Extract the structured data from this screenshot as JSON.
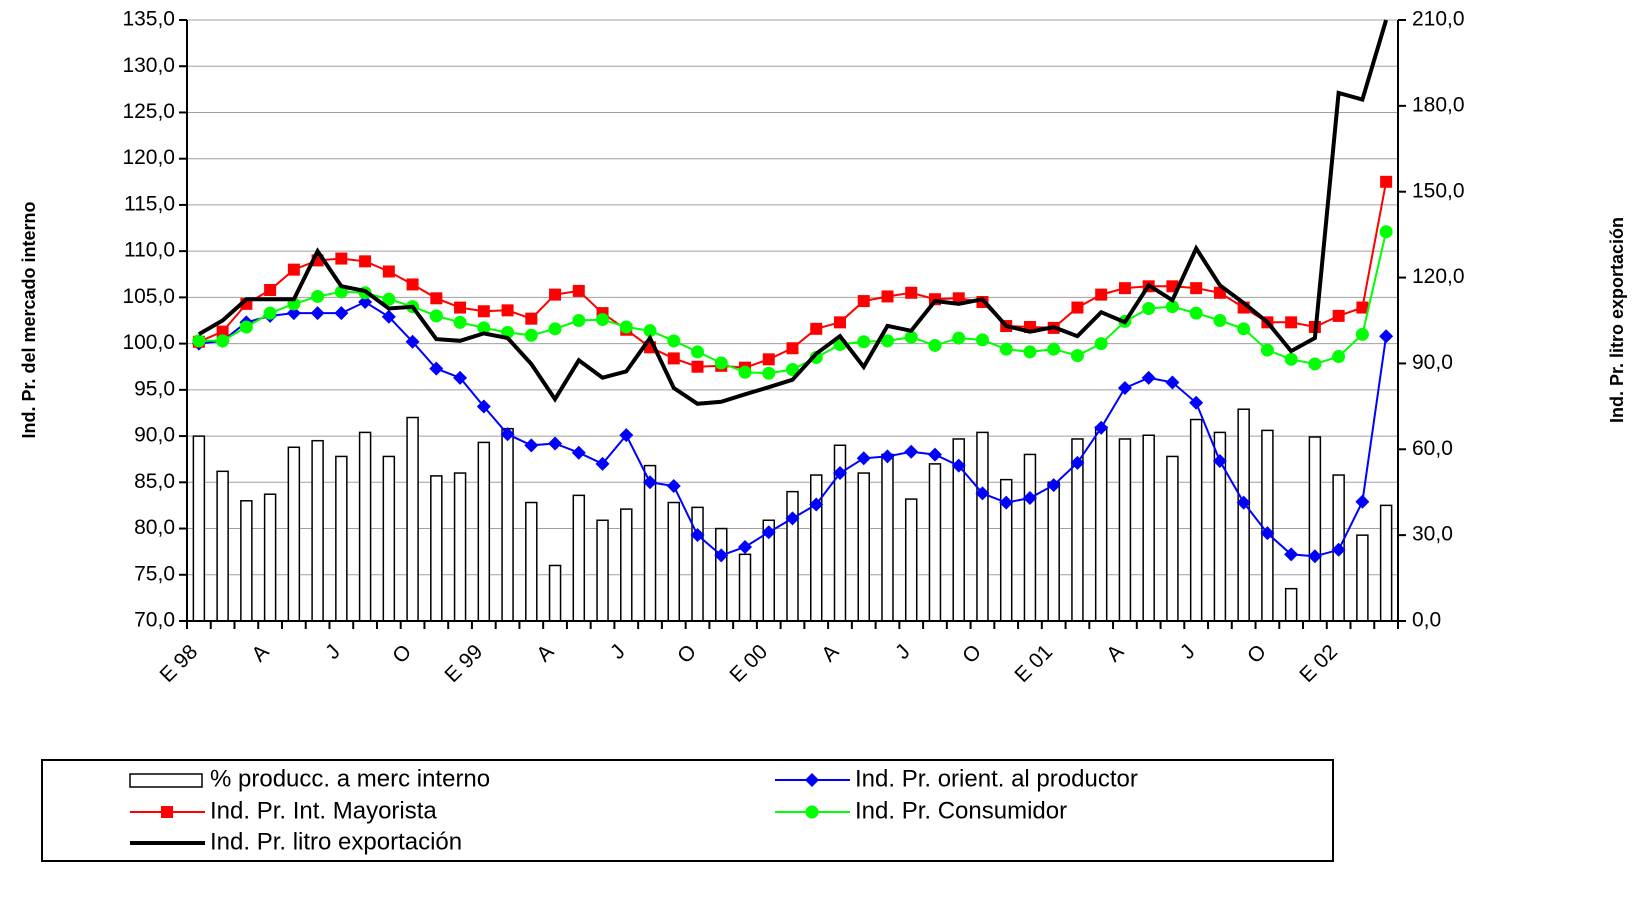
{
  "chart_data": {
    "type": "bar",
    "y_label": "Ind. Pr. del mercado interno",
    "y2_label": "Ind. Pr. litro exportación",
    "categories": [
      "E 98",
      null,
      null,
      "A",
      null,
      null,
      "J",
      null,
      null,
      "O",
      null,
      null,
      "E 99",
      null,
      null,
      "A",
      null,
      null,
      "J",
      null,
      null,
      "O",
      null,
      null,
      "E 00",
      null,
      null,
      "A",
      null,
      null,
      "J",
      null,
      null,
      "O",
      null,
      null,
      "E 01",
      null,
      null,
      "A",
      null,
      null,
      "J",
      null,
      null,
      "O",
      null,
      null,
      "E 02",
      null,
      null
    ],
    "ylim": [
      70,
      135
    ],
    "yticks": [
      {
        "value": 70,
        "label": "70,0"
      },
      {
        "value": 75,
        "label": "75,0"
      },
      {
        "value": 80,
        "label": "80,0"
      },
      {
        "value": 85,
        "label": "85,0"
      },
      {
        "value": 90,
        "label": "90,0"
      },
      {
        "value": 95,
        "label": "95,0"
      },
      {
        "value": 100,
        "label": "100,0"
      },
      {
        "value": 105,
        "label": "105,0"
      },
      {
        "value": 110,
        "label": "110,0"
      },
      {
        "value": 115,
        "label": "115,0"
      },
      {
        "value": 120,
        "label": "120,0"
      },
      {
        "value": 125,
        "label": "125,0"
      },
      {
        "value": 130,
        "label": "130,0"
      },
      {
        "value": 135,
        "label": "135,0"
      }
    ],
    "y2lim": [
      0,
      210
    ],
    "y2ticks": [
      {
        "value": 0,
        "label": "0,0"
      },
      {
        "value": 30,
        "label": "30,0"
      },
      {
        "value": 60,
        "label": "60,0"
      },
      {
        "value": 90,
        "label": "90,0"
      },
      {
        "value": 120,
        "label": "120,0"
      },
      {
        "value": 150,
        "label": "150,0"
      },
      {
        "value": 180,
        "label": "180,0"
      },
      {
        "value": 210,
        "label": "210,0"
      }
    ],
    "grid": true,
    "series": [
      {
        "name": "% producc. a merc interno",
        "type": "bar",
        "axis": "y2",
        "color": "#ffffff",
        "values": [
          64.6,
          52.3,
          42,
          44.3,
          60.7,
          63,
          57.5,
          65.9,
          57.5,
          71.1,
          50.7,
          51.7,
          62.4,
          67.2,
          41.4,
          19.4,
          43.9,
          35.2,
          39.1,
          54.3,
          41.4,
          39.7,
          32.3,
          23.3,
          35.2,
          45.2,
          51,
          61.4,
          51.7,
          58.2,
          42.6,
          54.9,
          63.6,
          65.9,
          49.4,
          58.2,
          48.5,
          63.6,
          67.8,
          63.6,
          64.9,
          57.5,
          70.4,
          65.9,
          74,
          66.6,
          11.3,
          64.3,
          51,
          30,
          40.4
        ]
      },
      {
        "name": "Ind. Pr. orient. al productor",
        "type": "line",
        "marker": "diamond",
        "color": "#0000ff",
        "values": [
          100,
          100.3,
          102.3,
          103,
          103.3,
          103.3,
          103.3,
          104.5,
          102.9,
          100.2,
          97.3,
          96.3,
          93.2,
          90.2,
          89,
          89.2,
          88.2,
          87,
          90.1,
          85,
          84.6,
          79.3,
          77.1,
          78,
          79.6,
          81.1,
          82.6,
          86,
          87.6,
          87.8,
          88.3,
          88,
          86.8,
          83.8,
          82.8,
          83.3,
          84.7,
          87.1,
          90.9,
          95.2,
          96.3,
          95.8,
          93.6,
          87.3,
          82.8,
          79.5,
          77.2,
          77,
          77.7,
          82.9,
          100.8
        ]
      },
      {
        "name": "Ind. Pr. Int. Mayorista",
        "type": "line",
        "marker": "square",
        "color": "#ff0000",
        "values": [
          100.2,
          101.3,
          104.3,
          105.8,
          108,
          109,
          109.2,
          108.9,
          107.8,
          106.4,
          104.9,
          103.9,
          103.5,
          103.6,
          102.7,
          105.3,
          105.7,
          103.3,
          101.5,
          99.6,
          98.4,
          97.5,
          97.6,
          97.4,
          98.3,
          99.5,
          101.6,
          102.3,
          104.6,
          105.1,
          105.5,
          104.8,
          104.9,
          104.5,
          101.9,
          101.8,
          101.7,
          103.9,
          105.3,
          106,
          106.2,
          106.2,
          106,
          105.5,
          103.9,
          102.3,
          102.3,
          101.8,
          103,
          103.9,
          117.5
        ]
      },
      {
        "name": "Ind. Pr. Consumidor",
        "type": "line",
        "marker": "circle",
        "color": "#00ff00",
        "values": [
          100.3,
          100.3,
          101.8,
          103.3,
          104.3,
          105.1,
          105.6,
          105.5,
          104.8,
          104,
          103,
          102.3,
          101.7,
          101.2,
          100.9,
          101.6,
          102.5,
          102.6,
          101.8,
          101.4,
          100.3,
          99.1,
          97.9,
          96.9,
          96.8,
          97.2,
          98.5,
          99.9,
          100.2,
          100.3,
          100.7,
          99.8,
          100.6,
          100.4,
          99.4,
          99.1,
          99.4,
          98.7,
          100,
          102.4,
          103.8,
          104,
          103.3,
          102.5,
          101.6,
          99.3,
          98.3,
          97.8,
          98.6,
          101,
          112.1
        ]
      },
      {
        "name": "Ind. Pr. litro exportación",
        "type": "line",
        "axis": "y2",
        "color": "#000000",
        "values": [
          100.2,
          105,
          112.4,
          112.4,
          112.4,
          129.2,
          117,
          115.3,
          109.2,
          109.8,
          98.5,
          97.9,
          100.5,
          98.9,
          89.8,
          77.5,
          91.1,
          85,
          87.2,
          98.9,
          81.4,
          75.9,
          76.6,
          79.2,
          81.7,
          84.3,
          93.4,
          99.5,
          88.8,
          103.1,
          101.4,
          111.8,
          110.8,
          112.4,
          103.1,
          101.1,
          102.7,
          99.5,
          107.9,
          104.4,
          117.3,
          112.1,
          130.2,
          117.3,
          111.1,
          104.4,
          94.3,
          98.9,
          184.5,
          182.2,
          210
        ]
      }
    ]
  }
}
